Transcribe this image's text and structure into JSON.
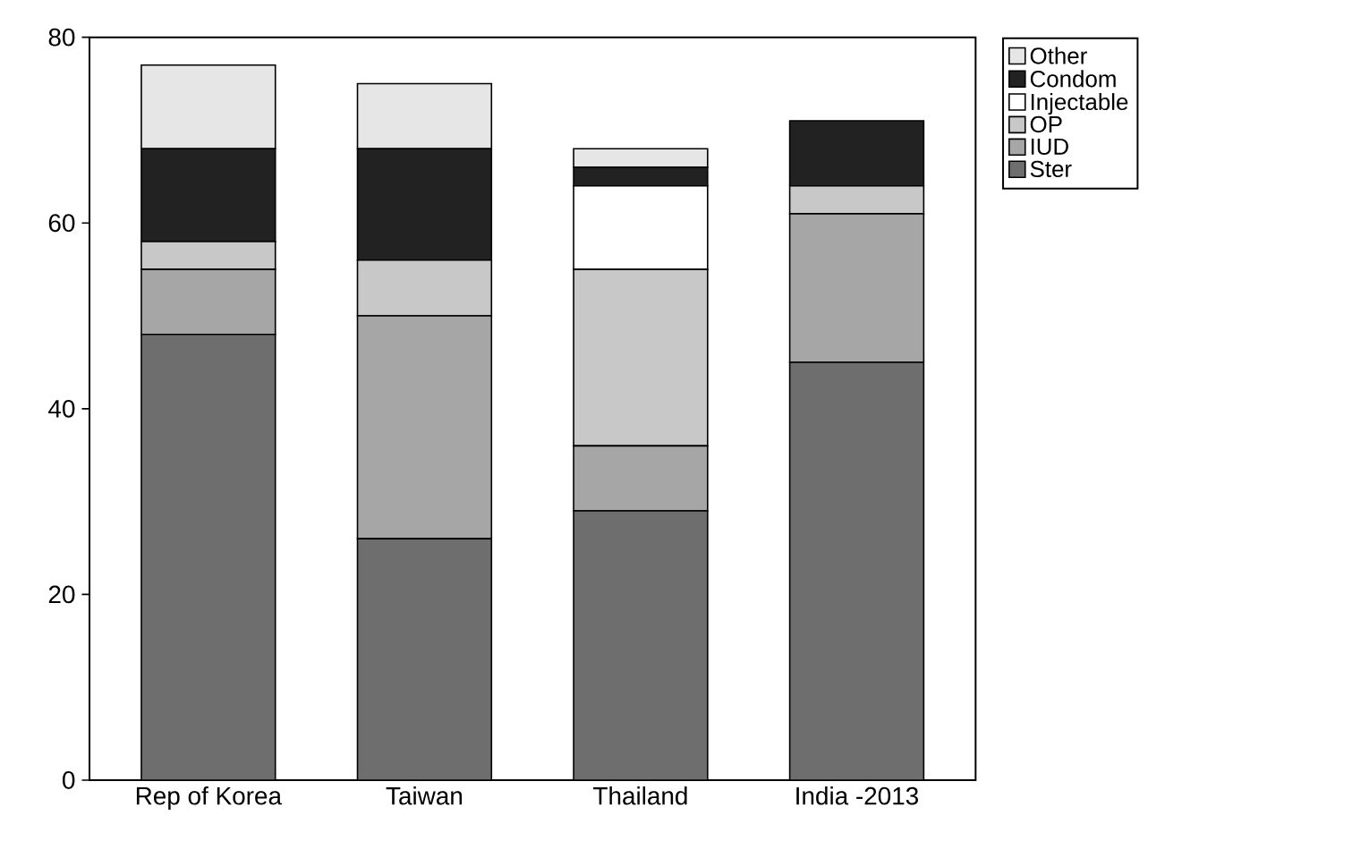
{
  "chart_data": {
    "type": "bar",
    "stacked": true,
    "categories": [
      "Rep of Korea",
      "Taiwan",
      "Thailand",
      "India -2013"
    ],
    "series": [
      {
        "name": "Ster",
        "color": "#6e6e6e",
        "values": [
          48,
          26,
          29,
          45
        ]
      },
      {
        "name": "IUD",
        "color": "#a6a6a6",
        "values": [
          7,
          24,
          7,
          16
        ]
      },
      {
        "name": "OP",
        "color": "#c8c8c8",
        "values": [
          3,
          6,
          19,
          3
        ]
      },
      {
        "name": "Injectable",
        "color": "#ffffff",
        "values": [
          0,
          0,
          9,
          0
        ]
      },
      {
        "name": "Condom",
        "color": "#222222",
        "values": [
          10,
          12,
          2,
          7
        ]
      },
      {
        "name": "Other",
        "color": "#e6e6e6",
        "values": [
          9,
          7,
          2,
          0
        ]
      }
    ],
    "ylim": [
      0,
      80
    ],
    "yticks": [
      0,
      20,
      40,
      60,
      80
    ],
    "legend": "top right"
  }
}
